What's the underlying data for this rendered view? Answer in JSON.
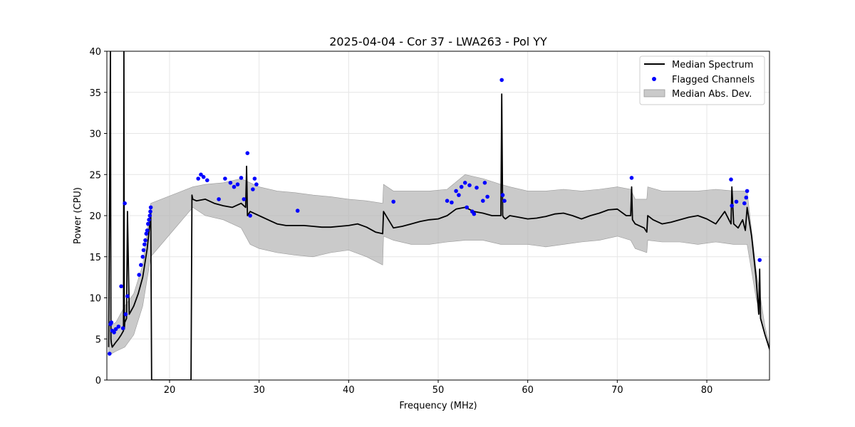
{
  "chart_data": {
    "type": "line",
    "title": "2025-04-04 - Cor 37 - LWA263 - Pol YY",
    "xlabel": "Frequency (MHz)",
    "ylabel": "Power (CPU)",
    "xlim": [
      13.0,
      87.0
    ],
    "ylim": [
      0,
      40
    ],
    "xticks": [
      20,
      30,
      40,
      50,
      60,
      70,
      80
    ],
    "yticks": [
      0,
      5,
      10,
      15,
      20,
      25,
      30,
      35,
      40
    ],
    "grid": true,
    "legend_position": "top-right",
    "legend": [
      "Median Spectrum",
      "Flagged Channels",
      "Median Abs. Dev."
    ],
    "colors": {
      "median": "#000000",
      "flagged": "#0000ff",
      "mad_fill": "#b3b3b3",
      "grid": "#e6e6e6"
    },
    "series": [
      {
        "name": "Median Spectrum",
        "x": [
          13.2,
          13.4,
          13.45,
          13.5,
          13.6,
          13.8,
          14.0,
          14.3,
          14.6,
          14.85,
          14.9,
          14.95,
          15.0,
          15.2,
          15.3,
          15.5,
          16.0,
          16.5,
          17.0,
          17.5,
          17.8,
          17.9,
          18.0,
          22.4,
          22.5,
          22.6,
          23.0,
          24.0,
          25.0,
          26.0,
          27.0,
          28.0,
          28.5,
          28.6,
          28.7,
          29.0,
          30.0,
          31.0,
          32.0,
          33.0,
          34.0,
          35.0,
          36.0,
          37.0,
          38.0,
          39.0,
          40.0,
          41.0,
          42.0,
          43.0,
          43.8,
          43.9,
          45.0,
          46.0,
          47.0,
          48.0,
          49.0,
          50.0,
          51.0,
          52.0,
          53.0,
          54.0,
          55.0,
          56.0,
          57.0,
          57.1,
          57.2,
          57.3,
          57.5,
          58.0,
          59.0,
          60.0,
          61.0,
          62.0,
          63.0,
          64.0,
          65.0,
          66.0,
          67.0,
          68.0,
          69.0,
          70.0,
          71.0,
          71.5,
          71.6,
          71.7,
          72.0,
          73.0,
          73.3,
          73.4,
          74.0,
          75.0,
          76.0,
          77.0,
          78.0,
          79.0,
          80.0,
          81.0,
          82.0,
          82.7,
          82.8,
          83.0,
          83.5,
          84.0,
          84.3,
          84.5,
          85.0,
          85.5,
          85.8,
          85.9,
          86.0,
          86.5,
          87.0
        ],
        "values": [
          4.0,
          40.0,
          5.0,
          4.5,
          4.0,
          4.3,
          4.6,
          5.0,
          5.5,
          6.0,
          40.0,
          6.2,
          7.0,
          7.5,
          20.5,
          8.0,
          9.0,
          10.5,
          12.5,
          16.0,
          19.0,
          20.5,
          0.0,
          0.0,
          22.5,
          22.0,
          21.8,
          22.0,
          21.5,
          21.2,
          21.0,
          21.5,
          21.0,
          26.0,
          20.0,
          20.5,
          20.0,
          19.5,
          19.0,
          18.8,
          18.8,
          18.8,
          18.7,
          18.6,
          18.6,
          18.7,
          18.8,
          19.0,
          18.6,
          18.0,
          17.8,
          20.5,
          18.5,
          18.7,
          19.0,
          19.3,
          19.5,
          19.6,
          20.0,
          20.8,
          21.0,
          20.5,
          20.3,
          20.0,
          20.0,
          34.8,
          20.0,
          19.8,
          19.6,
          20.0,
          19.8,
          19.6,
          19.7,
          19.9,
          20.2,
          20.3,
          20.0,
          19.6,
          20.0,
          20.3,
          20.7,
          20.8,
          20.0,
          20.0,
          23.5,
          19.5,
          19.0,
          18.5,
          18.0,
          20.0,
          19.5,
          19.0,
          19.2,
          19.5,
          19.8,
          20.0,
          19.6,
          19.0,
          20.5,
          19.0,
          23.5,
          19.0,
          18.5,
          19.5,
          18.2,
          21.0,
          17.5,
          12.5,
          8.0,
          13.5,
          7.5,
          5.5,
          3.8
        ]
      },
      {
        "name": "Flagged Channels",
        "x": [
          13.3,
          13.4,
          13.5,
          13.6,
          13.8,
          14.0,
          14.3,
          14.6,
          14.8,
          15.0,
          15.1,
          15.3,
          16.6,
          16.8,
          17.0,
          17.1,
          17.2,
          17.3,
          17.4,
          17.5,
          17.6,
          17.7,
          17.8,
          17.85,
          17.9,
          23.2,
          23.5,
          23.8,
          24.2,
          25.5,
          26.2,
          26.8,
          27.2,
          27.6,
          28.0,
          28.3,
          28.7,
          29.0,
          29.3,
          29.5,
          29.7,
          34.3,
          45.0,
          51.0,
          51.5,
          52.0,
          52.3,
          52.6,
          53.0,
          53.2,
          53.5,
          53.8,
          54.0,
          54.3,
          55.0,
          55.2,
          55.5,
          57.1,
          57.2,
          57.4,
          71.6,
          82.7,
          82.8,
          83.3,
          84.2,
          84.4,
          84.5,
          85.9
        ],
        "values": [
          3.2,
          6.8,
          7.0,
          6.0,
          5.8,
          6.2,
          6.5,
          11.4,
          6.3,
          21.5,
          8.0,
          10.2,
          12.8,
          14.0,
          15.0,
          15.8,
          16.5,
          17.0,
          17.8,
          18.2,
          19.0,
          19.5,
          20.0,
          20.5,
          21.0,
          24.5,
          25.0,
          24.7,
          24.3,
          22.0,
          24.5,
          24.0,
          23.5,
          23.8,
          24.6,
          22.0,
          27.6,
          20.0,
          23.2,
          24.5,
          23.8,
          20.6,
          21.7,
          21.8,
          21.6,
          23.0,
          22.5,
          23.5,
          24.0,
          21.0,
          23.7,
          20.5,
          20.2,
          23.4,
          21.8,
          24.0,
          22.3,
          36.5,
          22.5,
          21.8,
          24.6,
          24.4,
          21.2,
          21.7,
          21.5,
          22.2,
          23.0,
          14.6
        ]
      },
      {
        "name": "Median Abs. Dev.",
        "x": [
          13.2,
          14.0,
          15.0,
          16.0,
          17.0,
          17.9,
          22.6,
          24.0,
          26.0,
          28.0,
          29.0,
          30.0,
          32.0,
          34.0,
          36.0,
          38.0,
          40.0,
          42.0,
          43.8,
          43.9,
          45.0,
          47.0,
          49.0,
          51.0,
          53.0,
          55.0,
          57.0,
          58.0,
          60.0,
          62.0,
          64.0,
          66.0,
          68.0,
          70.0,
          71.5,
          72.0,
          73.3,
          73.4,
          75.0,
          77.0,
          79.0,
          81.0,
          83.0,
          84.5,
          85.5,
          86.5,
          87.0
        ],
        "upper": [
          6.5,
          7.0,
          9.0,
          10.5,
          14.0,
          21.5,
          23.5,
          23.8,
          24.0,
          24.5,
          24.0,
          23.5,
          23.0,
          22.8,
          22.5,
          22.3,
          22.0,
          21.8,
          21.5,
          23.8,
          23.0,
          23.0,
          23.0,
          23.2,
          25.0,
          24.5,
          23.8,
          23.5,
          23.0,
          23.0,
          23.2,
          23.0,
          23.2,
          23.5,
          23.2,
          22.0,
          22.0,
          23.5,
          23.0,
          23.0,
          23.0,
          23.2,
          23.0,
          23.0,
          13.5,
          6.5,
          4.2
        ],
        "lower": [
          3.0,
          3.5,
          4.0,
          5.5,
          9.0,
          15.0,
          21.0,
          20.0,
          19.5,
          18.5,
          16.5,
          16.0,
          15.5,
          15.2,
          15.0,
          15.5,
          15.8,
          15.0,
          14.0,
          17.5,
          17.0,
          16.5,
          16.5,
          16.8,
          17.0,
          17.0,
          16.5,
          16.5,
          16.5,
          16.2,
          16.5,
          16.8,
          17.0,
          17.5,
          17.0,
          16.0,
          15.5,
          17.0,
          16.8,
          16.8,
          16.5,
          16.8,
          16.5,
          16.5,
          10.0,
          5.5,
          3.5
        ]
      }
    ]
  }
}
